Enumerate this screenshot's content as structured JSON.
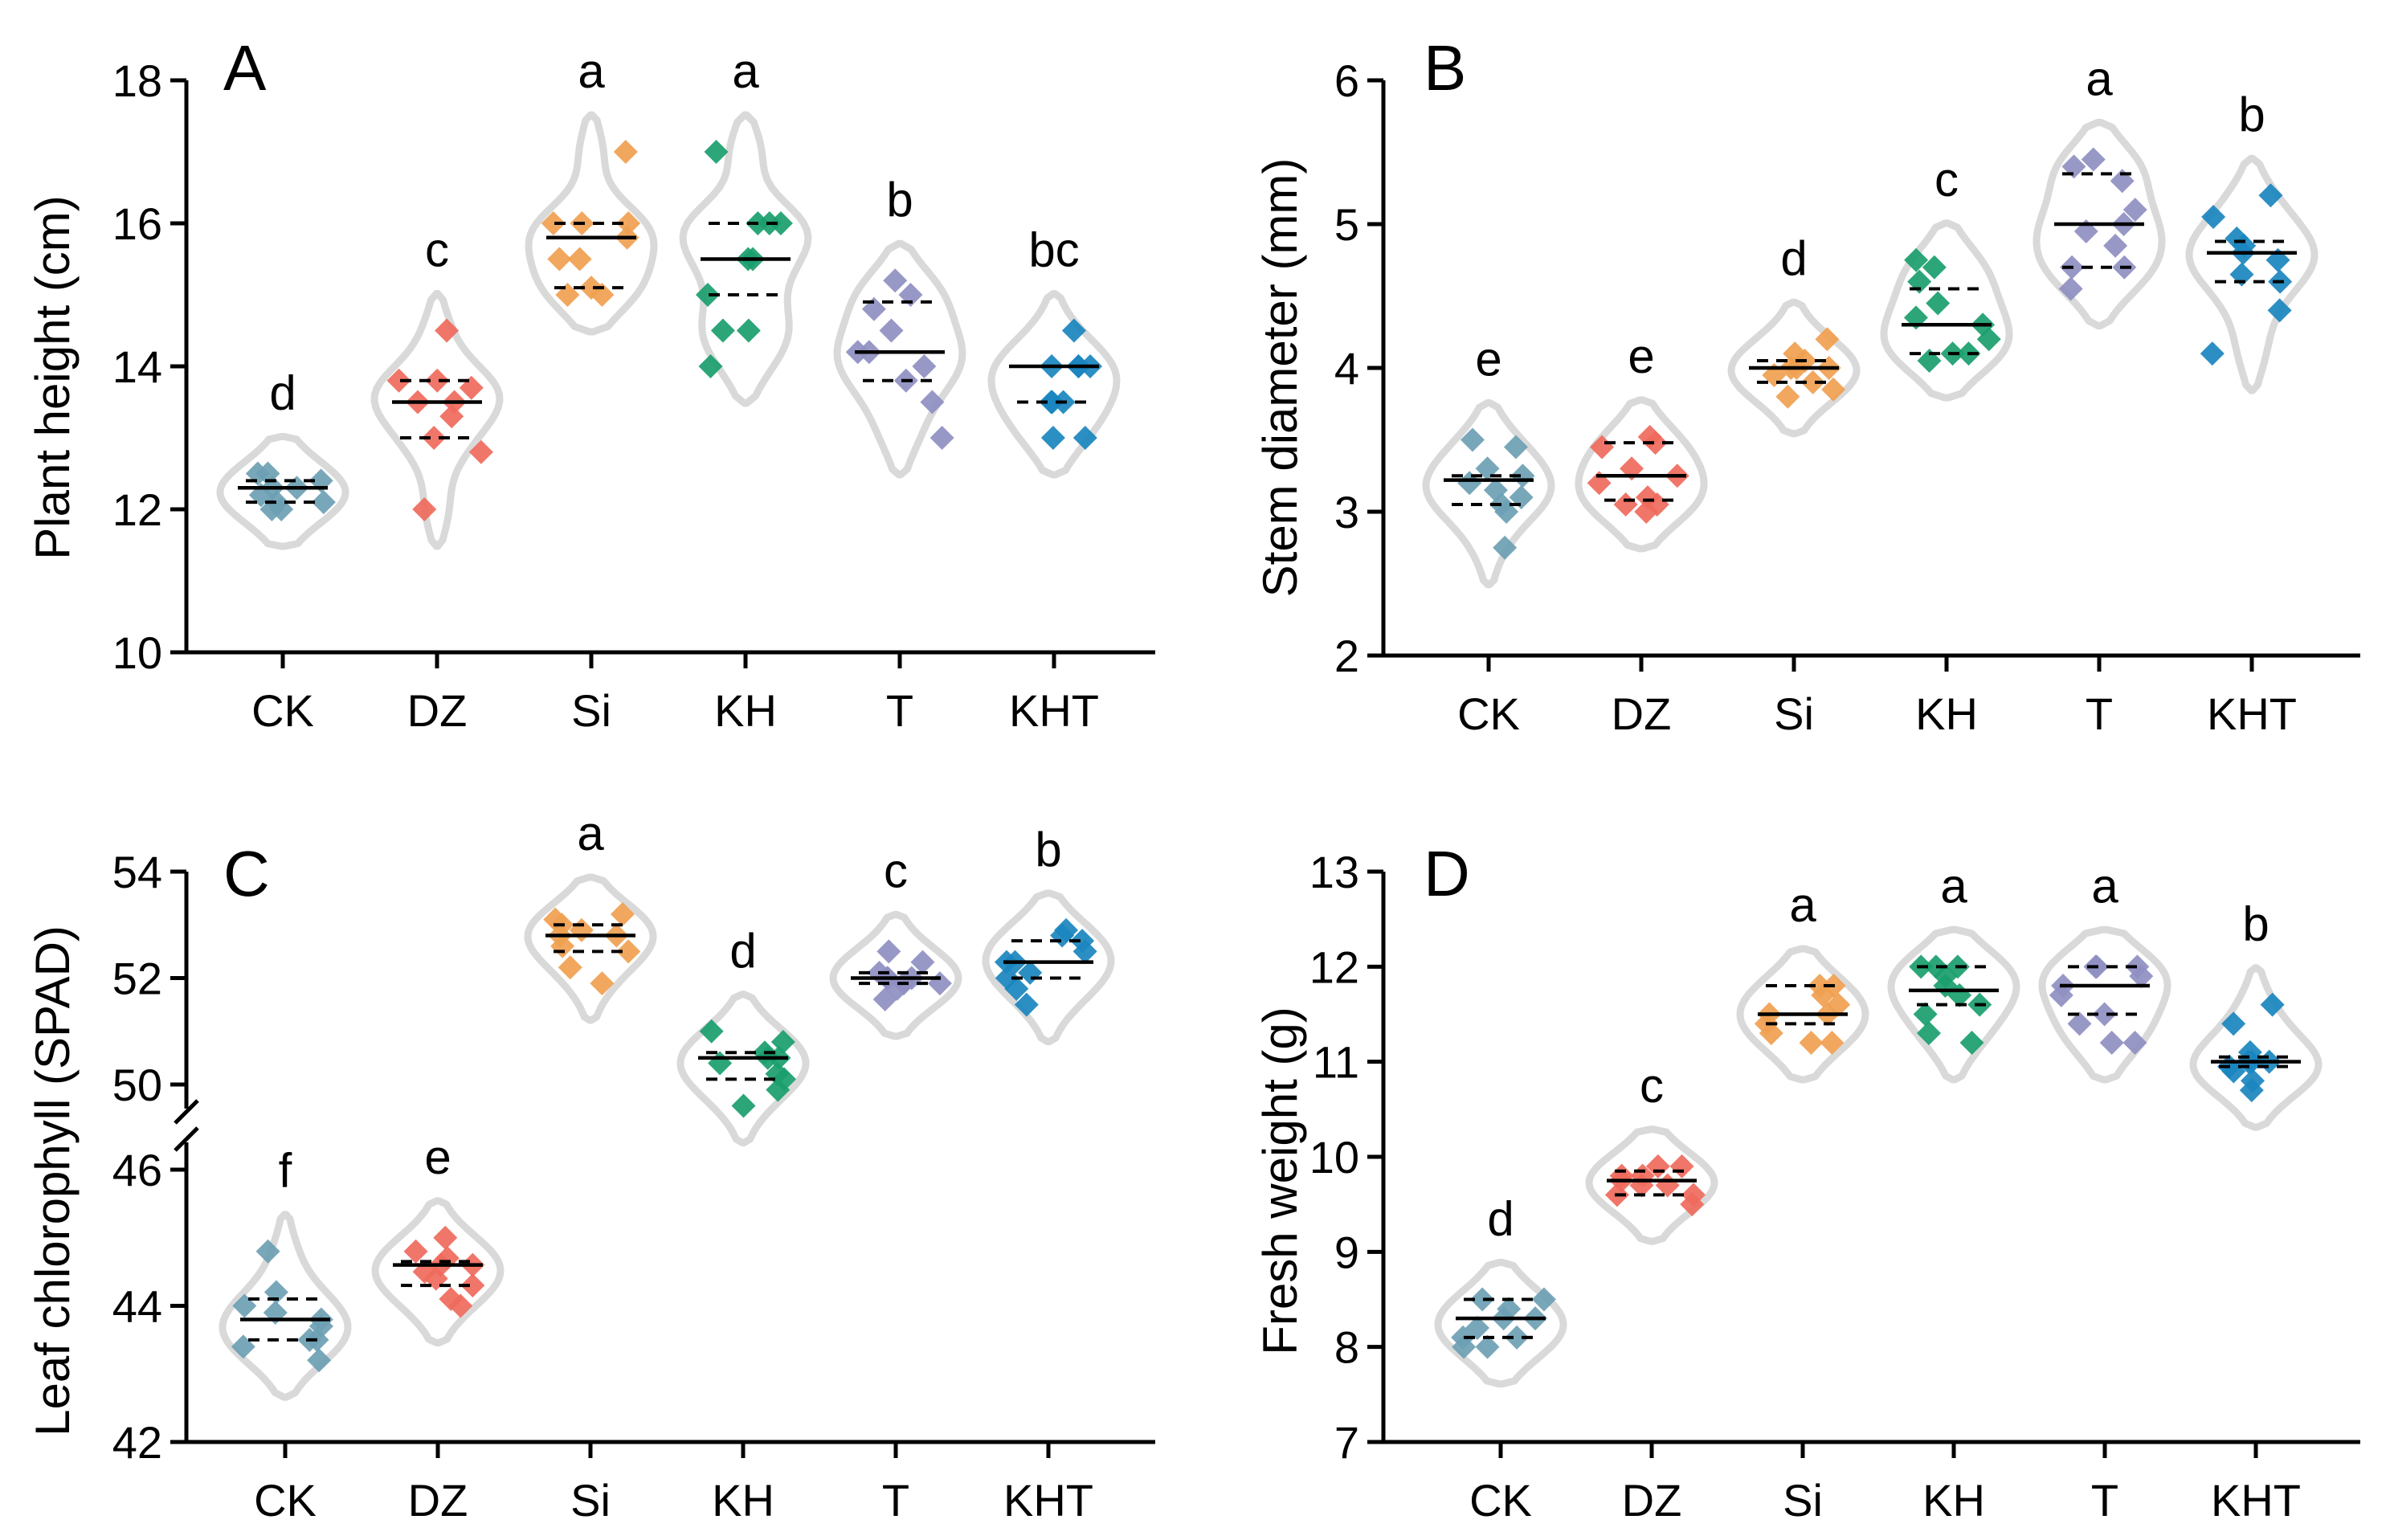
{
  "chart_data": [
    {
      "type": "violin",
      "panel": "A",
      "ylabel": "Plant height (cm)",
      "ylim": [
        10,
        18
      ],
      "yticks": [
        10,
        12,
        14,
        16,
        18
      ],
      "categories": [
        "CK",
        "DZ",
        "Si",
        "KH",
        "T",
        "KHT"
      ],
      "series": [
        {
          "name": "CK",
          "color": "#6d9fb3",
          "median": 12.3,
          "q1": 12.1,
          "q3": 12.4,
          "letter": "d",
          "points": [
            12.5,
            12.5,
            12.4,
            12.3,
            12.3,
            12.2,
            12.1,
            12.1,
            12.0,
            12.0
          ]
        },
        {
          "name": "DZ",
          "color": "#ef6a5c",
          "median": 13.5,
          "q1": 13.0,
          "q3": 13.8,
          "letter": "c",
          "points": [
            14.5,
            13.8,
            13.8,
            13.7,
            13.5,
            13.5,
            13.3,
            13.0,
            12.8,
            12.0
          ]
        },
        {
          "name": "Si",
          "color": "#f0a050",
          "median": 15.8,
          "q1": 15.1,
          "q3": 16.0,
          "letter": "a",
          "points": [
            17.0,
            16.0,
            16.0,
            16.0,
            15.8,
            15.5,
            15.5,
            15.1,
            15.0,
            15.0
          ]
        },
        {
          "name": "KH",
          "color": "#1a9e6e",
          "median": 15.5,
          "q1": 15.0,
          "q3": 16.0,
          "letter": "a",
          "points": [
            17.0,
            16.0,
            16.0,
            16.0,
            15.5,
            15.5,
            15.0,
            14.5,
            14.5,
            14.0
          ]
        },
        {
          "name": "T",
          "color": "#8f8fc2",
          "median": 14.2,
          "q1": 13.8,
          "q3": 14.9,
          "letter": "b",
          "points": [
            15.2,
            15.0,
            14.8,
            14.5,
            14.2,
            14.2,
            14.0,
            13.8,
            13.5,
            13.0
          ]
        },
        {
          "name": "KHT",
          "color": "#1a86bf",
          "median": 14.0,
          "q1": 13.5,
          "q3": 14.0,
          "letter": "bc",
          "points": [
            14.5,
            14.0,
            14.0,
            14.0,
            14.0,
            13.5,
            13.5,
            13.5,
            13.0,
            13.0
          ]
        }
      ]
    },
    {
      "type": "violin",
      "panel": "B",
      "ylabel": "Stem diameter (mm)",
      "ylim": [
        2,
        6
      ],
      "yticks": [
        2,
        3,
        4,
        5,
        6
      ],
      "categories": [
        "CK",
        "DZ",
        "Si",
        "KH",
        "T",
        "KHT"
      ],
      "series": [
        {
          "name": "CK",
          "color": "#6d9fb3",
          "median": 3.22,
          "q1": 3.05,
          "q3": 3.25,
          "letter": "e",
          "points": [
            3.5,
            3.45,
            3.3,
            3.25,
            3.2,
            3.15,
            3.1,
            3.05,
            3.0,
            2.75
          ]
        },
        {
          "name": "DZ",
          "color": "#ef6a5c",
          "median": 3.25,
          "q1": 3.08,
          "q3": 3.48,
          "letter": "e",
          "points": [
            3.52,
            3.48,
            3.45,
            3.3,
            3.25,
            3.2,
            3.1,
            3.05,
            3.05,
            3.0
          ]
        },
        {
          "name": "Si",
          "color": "#f0a050",
          "median": 4.0,
          "q1": 3.9,
          "q3": 4.05,
          "letter": "d",
          "points": [
            4.2,
            4.1,
            4.05,
            4.0,
            4.0,
            4.0,
            3.95,
            3.9,
            3.85,
            3.8
          ]
        },
        {
          "name": "KH",
          "color": "#1a9e6e",
          "median": 4.3,
          "q1": 4.1,
          "q3": 4.55,
          "letter": "c",
          "points": [
            4.75,
            4.7,
            4.6,
            4.45,
            4.35,
            4.3,
            4.2,
            4.1,
            4.1,
            4.05
          ]
        },
        {
          "name": "T",
          "color": "#8f8fc2",
          "median": 5.0,
          "q1": 4.7,
          "q3": 5.35,
          "letter": "a",
          "points": [
            5.45,
            5.4,
            5.3,
            5.1,
            5.0,
            4.95,
            4.85,
            4.7,
            4.7,
            4.55
          ]
        },
        {
          "name": "KHT",
          "color": "#1a86bf",
          "median": 4.8,
          "q1": 4.6,
          "q3": 4.88,
          "letter": "b",
          "points": [
            5.2,
            5.05,
            4.9,
            4.85,
            4.8,
            4.75,
            4.65,
            4.6,
            4.4,
            4.1
          ]
        }
      ]
    },
    {
      "type": "violin",
      "panel": "C",
      "ylabel": "Leaf chlorophyll (SPAD)",
      "axis_break": true,
      "lower_range": [
        42,
        46
      ],
      "upper_range": [
        50,
        54
      ],
      "yticks": [
        42,
        44,
        46,
        50,
        52,
        54
      ],
      "categories": [
        "CK",
        "DZ",
        "Si",
        "KH",
        "T",
        "KHT"
      ],
      "series": [
        {
          "name": "CK",
          "color": "#6d9fb3",
          "median": 43.8,
          "q1": 43.5,
          "q3": 44.1,
          "letter": "f",
          "points": [
            44.8,
            44.2,
            44.0,
            43.9,
            43.8,
            43.7,
            43.5,
            43.5,
            43.4,
            43.2
          ]
        },
        {
          "name": "DZ",
          "color": "#ef6a5c",
          "median": 44.6,
          "q1": 44.3,
          "q3": 44.65,
          "letter": "e",
          "points": [
            45.0,
            44.8,
            44.7,
            44.6,
            44.6,
            44.5,
            44.4,
            44.3,
            44.1,
            44.0
          ]
        },
        {
          "name": "Si",
          "color": "#f0a050",
          "median": 52.8,
          "q1": 52.5,
          "q3": 53.0,
          "letter": "a",
          "points": [
            53.2,
            53.1,
            53.0,
            52.9,
            52.8,
            52.8,
            52.6,
            52.5,
            52.2,
            51.9
          ]
        },
        {
          "name": "KH",
          "color": "#1a9e6e",
          "median": 50.5,
          "q1": 50.1,
          "q3": 50.6,
          "letter": "d",
          "points": [
            51.0,
            50.8,
            50.6,
            50.5,
            50.5,
            50.4,
            50.2,
            50.1,
            49.9,
            49.6
          ]
        },
        {
          "name": "T",
          "color": "#8f8fc2",
          "median": 52.0,
          "q1": 51.9,
          "q3": 52.1,
          "letter": "c",
          "points": [
            52.5,
            52.3,
            52.1,
            52.0,
            52.0,
            52.0,
            51.9,
            51.9,
            51.8,
            51.6
          ]
        },
        {
          "name": "KHT",
          "color": "#1a86bf",
          "median": 52.3,
          "q1": 52.0,
          "q3": 52.7,
          "letter": "b",
          "points": [
            52.9,
            52.8,
            52.7,
            52.5,
            52.3,
            52.3,
            52.1,
            52.0,
            51.8,
            51.5
          ]
        }
      ]
    },
    {
      "type": "violin",
      "panel": "D",
      "ylabel": "Fresh weight (g)",
      "ylim": [
        7,
        13
      ],
      "yticks": [
        7,
        8,
        9,
        10,
        11,
        12,
        13
      ],
      "categories": [
        "CK",
        "DZ",
        "Si",
        "KH",
        "T",
        "KHT"
      ],
      "series": [
        {
          "name": "CK",
          "color": "#6d9fb3",
          "median": 8.3,
          "q1": 8.1,
          "q3": 8.5,
          "letter": "d",
          "points": [
            8.5,
            8.5,
            8.4,
            8.3,
            8.3,
            8.2,
            8.1,
            8.1,
            8.0,
            8.0
          ]
        },
        {
          "name": "DZ",
          "color": "#ef6a5c",
          "median": 9.75,
          "q1": 9.6,
          "q3": 9.85,
          "letter": "c",
          "points": [
            9.9,
            9.9,
            9.8,
            9.8,
            9.75,
            9.7,
            9.7,
            9.6,
            9.6,
            9.5
          ]
        },
        {
          "name": "Si",
          "color": "#f0a050",
          "median": 11.5,
          "q1": 11.4,
          "q3": 11.8,
          "letter": "a",
          "points": [
            11.8,
            11.8,
            11.7,
            11.6,
            11.5,
            11.5,
            11.4,
            11.3,
            11.2,
            11.2
          ]
        },
        {
          "name": "KH",
          "color": "#1a9e6e",
          "median": 11.75,
          "q1": 11.6,
          "q3": 12.0,
          "letter": "a",
          "points": [
            12.0,
            12.0,
            12.0,
            11.9,
            11.8,
            11.7,
            11.6,
            11.5,
            11.3,
            11.2
          ]
        },
        {
          "name": "T",
          "color": "#8f8fc2",
          "median": 11.8,
          "q1": 11.5,
          "q3": 12.0,
          "letter": "a",
          "points": [
            12.0,
            12.0,
            12.0,
            11.9,
            11.8,
            11.7,
            11.5,
            11.4,
            11.2,
            11.2
          ]
        },
        {
          "name": "KHT",
          "color": "#1a86bf",
          "median": 11.0,
          "q1": 10.95,
          "q3": 11.05,
          "letter": "b",
          "points": [
            11.6,
            11.4,
            11.1,
            11.0,
            11.0,
            11.0,
            10.95,
            10.9,
            10.8,
            10.7
          ]
        }
      ]
    }
  ]
}
